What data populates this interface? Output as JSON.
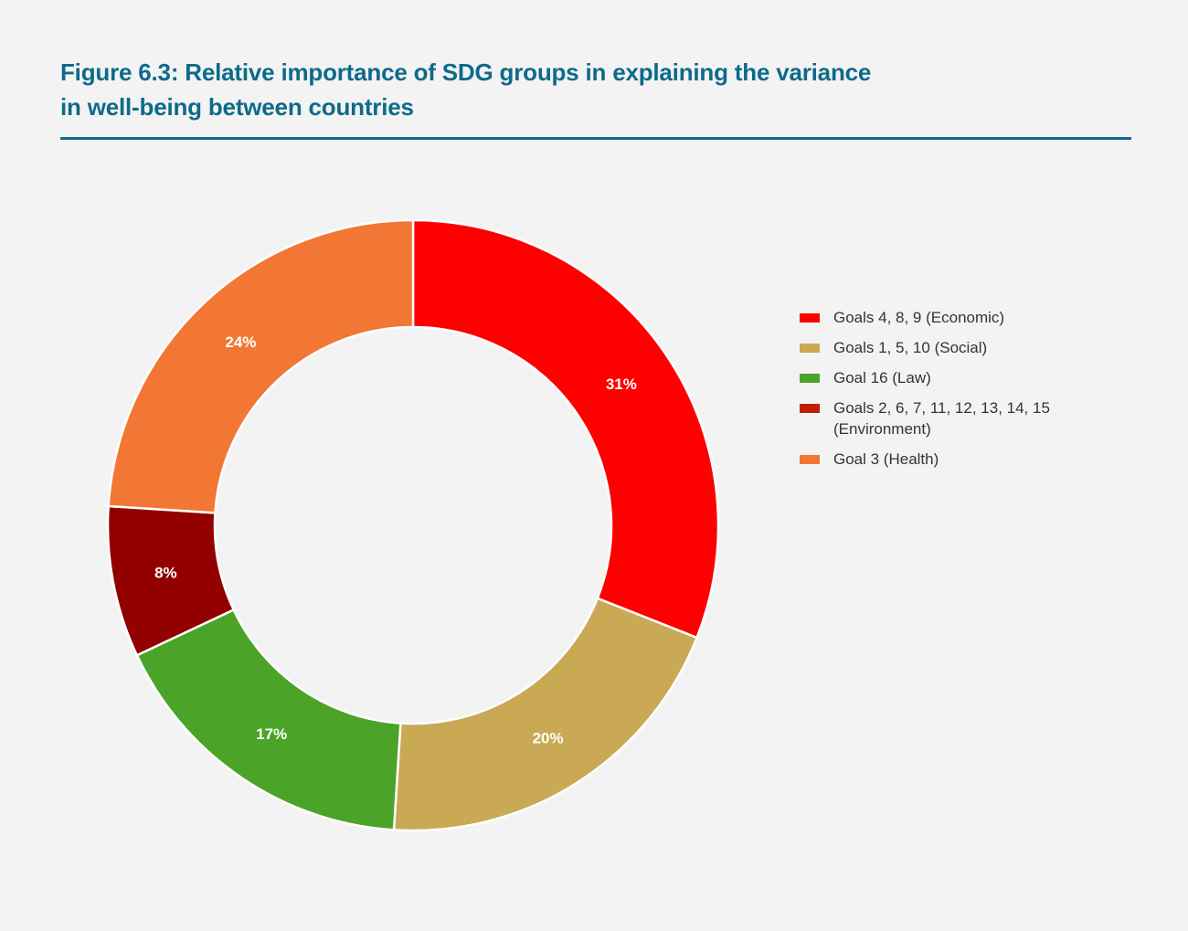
{
  "figure": {
    "title_line1": "Figure 6.3: Relative importance of SDG groups in explaining the variance",
    "title_line2": "in well-being between countries",
    "rule_color": "#0e6a8a"
  },
  "legend": {
    "items": [
      {
        "label": "Goals 4, 8, 9 (Economic)",
        "color": "#ff0000"
      },
      {
        "label": "Goals 1, 5, 10 (Social)",
        "color": "#c9a954"
      },
      {
        "label": "Goal 16 (Law)",
        "color": "#4ba428"
      },
      {
        "label": "Goals 2, 6, 7, 11, 12, 13, 14, 15 (Environment)",
        "color": "#c11d00"
      },
      {
        "label": "Goal 3 (Health)",
        "color": "#f27735"
      }
    ]
  },
  "chart_data": {
    "type": "pie",
    "subtype": "donut",
    "title": "Figure 6.3: Relative importance of SDG groups in explaining the variance in well-being between countries",
    "categories": [
      "Goals 4, 8, 9 (Economic)",
      "Goals 1, 5, 10 (Social)",
      "Goal 16 (Law)",
      "Goals 2, 6, 7, 11, 12, 13, 14, 15 (Environment)",
      "Goal 3 (Health)"
    ],
    "values": [
      31,
      20,
      17,
      8,
      24
    ],
    "labels": [
      "31%",
      "20%",
      "17%",
      "8%",
      "24%"
    ],
    "colors": [
      "#ff0000",
      "#c9a954",
      "#4ba428",
      "#930000",
      "#f27735"
    ],
    "start_angle_deg": 0,
    "direction": "clockwise",
    "legend_position": "right",
    "center": [
      452,
      575
    ],
    "outer_radius": 334,
    "inner_radius": 217
  }
}
